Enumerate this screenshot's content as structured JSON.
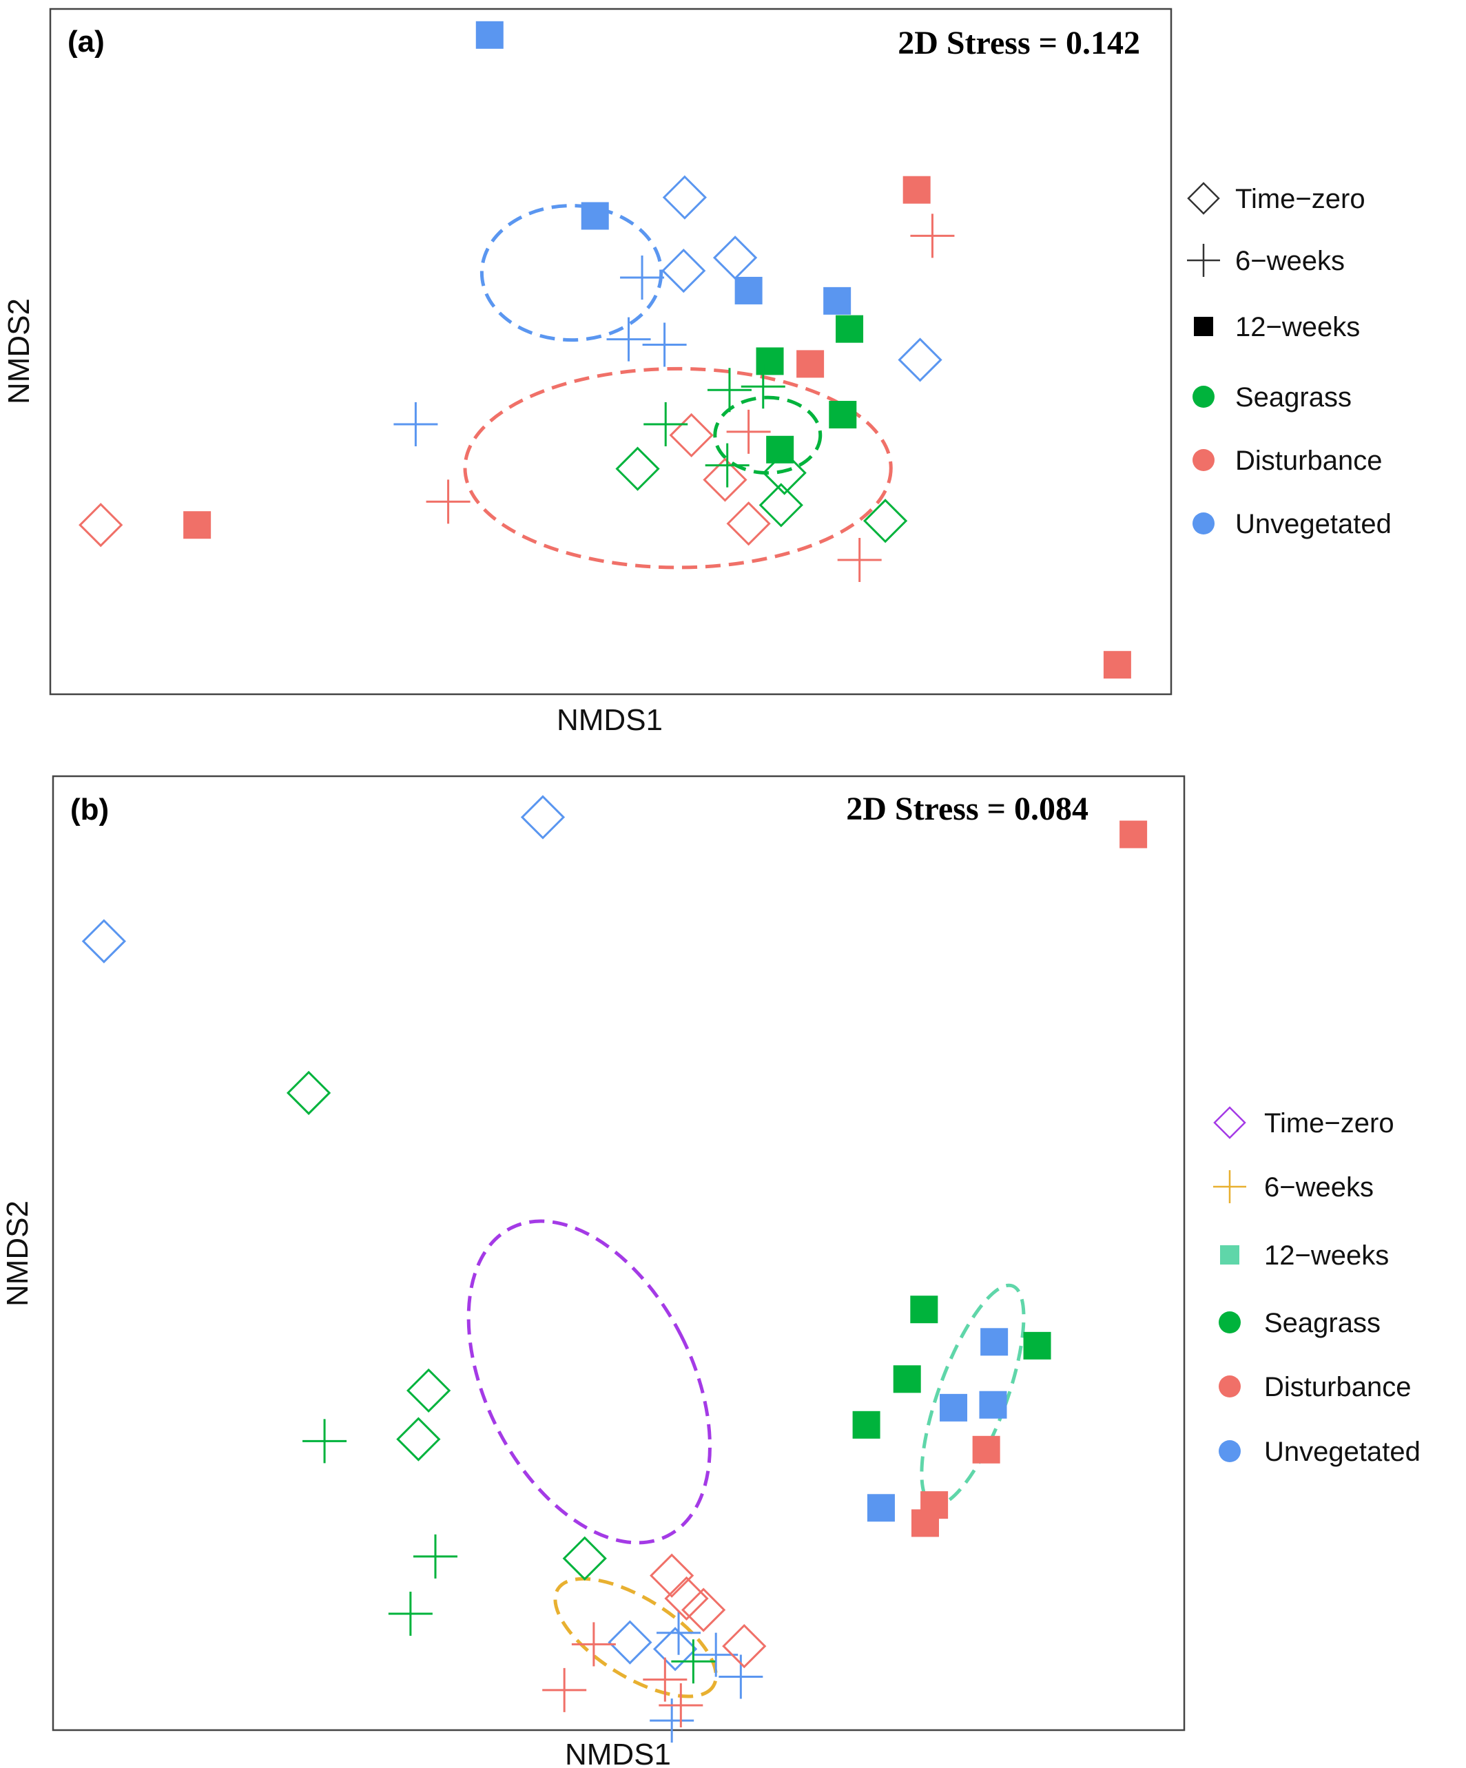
{
  "chart_data": [
    {
      "type": "scatter",
      "panel_label": "(a)",
      "stress_label": "2D Stress = 0.142",
      "xlabel": "NMDS1",
      "ylabel": "NMDS2",
      "xlim": [
        0,
        100
      ],
      "ylim": [
        0,
        100
      ],
      "colors": {
        "Seagrass": "#00b33c",
        "Disturbance": "#f07068",
        "Unvegetated": "#5a96f0"
      },
      "legend": {
        "position": "right",
        "shape_entries": [
          {
            "label": "Time−zero",
            "shape": "diamond",
            "color": "#333333"
          },
          {
            "label": "6−weeks",
            "shape": "plus",
            "color": "#333333"
          },
          {
            "label": "12−weeks",
            "shape": "square",
            "color": "#000000"
          }
        ],
        "color_entries": [
          {
            "label": "Seagrass",
            "color": "#00b33c"
          },
          {
            "label": "Disturbance",
            "color": "#f07068"
          },
          {
            "label": "Unvegetated",
            "color": "#5a96f0"
          }
        ]
      },
      "ellipses": [
        {
          "group": "Unvegetated",
          "color": "#5a96f0",
          "cx": 46.5,
          "cy": 61.5,
          "rx": 8.0,
          "ry": 9.8,
          "angle": 0
        },
        {
          "group": "Disturbance",
          "color": "#f07068",
          "cx": 56.0,
          "cy": 33.0,
          "rx": 19.0,
          "ry": 14.5,
          "angle": 0
        },
        {
          "group": "Seagrass",
          "color": "#00b33c",
          "cx": 64.0,
          "cy": 37.8,
          "rx": 4.7,
          "ry": 5.5,
          "angle": 0
        }
      ],
      "points": [
        {
          "x": 39.2,
          "y": 96.2,
          "shape": "square",
          "group": "Unvegetated"
        },
        {
          "x": 56.6,
          "y": 72.5,
          "shape": "diamond",
          "group": "Unvegetated"
        },
        {
          "x": 48.6,
          "y": 69.8,
          "shape": "square",
          "group": "Unvegetated"
        },
        {
          "x": 61.1,
          "y": 63.7,
          "shape": "diamond",
          "group": "Unvegetated"
        },
        {
          "x": 52.8,
          "y": 60.8,
          "shape": "plus",
          "group": "Unvegetated"
        },
        {
          "x": 56.5,
          "y": 61.8,
          "shape": "diamond",
          "group": "Unvegetated"
        },
        {
          "x": 62.3,
          "y": 58.9,
          "shape": "square",
          "group": "Unvegetated"
        },
        {
          "x": 70.2,
          "y": 57.4,
          "shape": "square",
          "group": "Unvegetated"
        },
        {
          "x": 51.6,
          "y": 51.8,
          "shape": "plus",
          "group": "Unvegetated"
        },
        {
          "x": 54.8,
          "y": 51.0,
          "shape": "plus",
          "group": "Unvegetated"
        },
        {
          "x": 77.6,
          "y": 48.8,
          "shape": "diamond",
          "group": "Unvegetated"
        },
        {
          "x": 32.6,
          "y": 39.4,
          "shape": "plus",
          "group": "Unvegetated"
        },
        {
          "x": 77.3,
          "y": 73.6,
          "shape": "square",
          "group": "Disturbance"
        },
        {
          "x": 78.7,
          "y": 66.9,
          "shape": "plus",
          "group": "Disturbance"
        },
        {
          "x": 67.8,
          "y": 48.2,
          "shape": "square",
          "group": "Disturbance"
        },
        {
          "x": 57.2,
          "y": 37.8,
          "shape": "diamond",
          "group": "Disturbance"
        },
        {
          "x": 62.3,
          "y": 38.3,
          "shape": "plus",
          "group": "Disturbance"
        },
        {
          "x": 60.2,
          "y": 31.3,
          "shape": "diamond",
          "group": "Disturbance"
        },
        {
          "x": 35.5,
          "y": 28.1,
          "shape": "plus",
          "group": "Disturbance"
        },
        {
          "x": 62.3,
          "y": 24.9,
          "shape": "diamond",
          "group": "Disturbance"
        },
        {
          "x": 4.5,
          "y": 24.7,
          "shape": "diamond",
          "group": "Disturbance"
        },
        {
          "x": 13.1,
          "y": 24.7,
          "shape": "square",
          "group": "Disturbance"
        },
        {
          "x": 72.2,
          "y": 19.6,
          "shape": "plus",
          "group": "Disturbance"
        },
        {
          "x": 95.2,
          "y": 4.3,
          "shape": "square",
          "group": "Disturbance"
        },
        {
          "x": 71.3,
          "y": 53.3,
          "shape": "square",
          "group": "Seagrass"
        },
        {
          "x": 64.2,
          "y": 48.6,
          "shape": "square",
          "group": "Seagrass"
        },
        {
          "x": 60.6,
          "y": 44.4,
          "shape": "plus",
          "group": "Seagrass"
        },
        {
          "x": 63.6,
          "y": 44.9,
          "shape": "plus",
          "group": "Seagrass"
        },
        {
          "x": 70.7,
          "y": 40.8,
          "shape": "square",
          "group": "Seagrass"
        },
        {
          "x": 54.9,
          "y": 39.4,
          "shape": "plus",
          "group": "Seagrass"
        },
        {
          "x": 65.1,
          "y": 35.7,
          "shape": "square",
          "group": "Seagrass"
        },
        {
          "x": 60.4,
          "y": 33.4,
          "shape": "plus",
          "group": "Seagrass"
        },
        {
          "x": 52.4,
          "y": 32.9,
          "shape": "diamond",
          "group": "Seagrass"
        },
        {
          "x": 65.5,
          "y": 32.3,
          "shape": "diamond",
          "group": "Seagrass"
        },
        {
          "x": 65.2,
          "y": 27.6,
          "shape": "diamond",
          "group": "Seagrass"
        },
        {
          "x": 74.5,
          "y": 25.3,
          "shape": "diamond",
          "group": "Seagrass"
        }
      ]
    },
    {
      "type": "scatter",
      "panel_label": "(b)",
      "stress_label": "2D Stress = 0.084",
      "xlabel": "NMDS1",
      "ylabel": "NMDS2",
      "xlim": [
        0,
        100
      ],
      "ylim": [
        0,
        100
      ],
      "colors": {
        "Seagrass": "#00b33c",
        "Disturbance": "#f07068",
        "Unvegetated": "#5a96f0"
      },
      "legend": {
        "position": "right",
        "shape_entries": [
          {
            "label": "Time−zero",
            "shape": "diamond",
            "color": "#a43ae6"
          },
          {
            "label": "6−weeks",
            "shape": "plus",
            "color": "#e8b030"
          },
          {
            "label": "12−weeks",
            "shape": "square",
            "color": "#5fd6a9"
          }
        ],
        "color_entries": [
          {
            "label": "Seagrass",
            "color": "#00b33c"
          },
          {
            "label": "Disturbance",
            "color": "#f07068"
          },
          {
            "label": "Unvegetated",
            "color": "#5a96f0"
          }
        ]
      },
      "ellipses": [
        {
          "group": "Time−zero",
          "color": "#a43ae6",
          "cx": 47.4,
          "cy": 36.5,
          "rx": 9.1,
          "ry": 18.1,
          "angle": -27
        },
        {
          "group": "6−weeks",
          "color": "#e8b030",
          "cx": 51.5,
          "cy": 9.7,
          "rx": 8.1,
          "ry": 4.1,
          "angle": 32
        },
        {
          "group": "12−weeks",
          "color": "#5fd6a9",
          "cx": 81.3,
          "cy": 35.1,
          "rx": 3.0,
          "ry": 12.2,
          "angle": 20
        }
      ],
      "points": [
        {
          "x": 43.3,
          "y": 95.7,
          "shape": "diamond",
          "group": "Unvegetated"
        },
        {
          "x": 4.5,
          "y": 82.7,
          "shape": "diamond",
          "group": "Unvegetated"
        },
        {
          "x": 51.0,
          "y": 9.2,
          "shape": "diamond",
          "group": "Unvegetated"
        },
        {
          "x": 55.0,
          "y": 8.5,
          "shape": "diamond",
          "group": "Unvegetated"
        },
        {
          "x": 55.3,
          "y": 10.2,
          "shape": "plus",
          "group": "Unvegetated"
        },
        {
          "x": 58.6,
          "y": 7.9,
          "shape": "plus",
          "group": "Unvegetated"
        },
        {
          "x": 60.8,
          "y": 5.6,
          "shape": "plus",
          "group": "Unvegetated"
        },
        {
          "x": 54.7,
          "y": 1.0,
          "shape": "plus",
          "group": "Unvegetated"
        },
        {
          "x": 83.2,
          "y": 40.7,
          "shape": "square",
          "group": "Unvegetated"
        },
        {
          "x": 79.6,
          "y": 33.8,
          "shape": "square",
          "group": "Unvegetated"
        },
        {
          "x": 83.1,
          "y": 34.1,
          "shape": "square",
          "group": "Unvegetated"
        },
        {
          "x": 73.2,
          "y": 23.3,
          "shape": "square",
          "group": "Unvegetated"
        },
        {
          "x": 95.5,
          "y": 93.9,
          "shape": "square",
          "group": "Disturbance"
        },
        {
          "x": 82.5,
          "y": 29.4,
          "shape": "square",
          "group": "Disturbance"
        },
        {
          "x": 77.9,
          "y": 23.6,
          "shape": "square",
          "group": "Disturbance"
        },
        {
          "x": 77.1,
          "y": 21.7,
          "shape": "square",
          "group": "Disturbance"
        },
        {
          "x": 54.7,
          "y": 16.2,
          "shape": "diamond",
          "group": "Disturbance"
        },
        {
          "x": 56.0,
          "y": 13.8,
          "shape": "diamond",
          "group": "Disturbance"
        },
        {
          "x": 57.5,
          "y": 12.6,
          "shape": "diamond",
          "group": "Disturbance"
        },
        {
          "x": 61.1,
          "y": 8.8,
          "shape": "diamond",
          "group": "Disturbance"
        },
        {
          "x": 47.8,
          "y": 9.0,
          "shape": "plus",
          "group": "Disturbance"
        },
        {
          "x": 54.1,
          "y": 5.3,
          "shape": "plus",
          "group": "Disturbance"
        },
        {
          "x": 45.2,
          "y": 4.2,
          "shape": "plus",
          "group": "Disturbance"
        },
        {
          "x": 55.5,
          "y": 2.6,
          "shape": "plus",
          "group": "Disturbance"
        },
        {
          "x": 22.6,
          "y": 66.8,
          "shape": "diamond",
          "group": "Seagrass"
        },
        {
          "x": 33.2,
          "y": 35.6,
          "shape": "diamond",
          "group": "Seagrass"
        },
        {
          "x": 32.3,
          "y": 30.5,
          "shape": "diamond",
          "group": "Seagrass"
        },
        {
          "x": 47.0,
          "y": 18.0,
          "shape": "diamond",
          "group": "Seagrass"
        },
        {
          "x": 24.0,
          "y": 30.3,
          "shape": "plus",
          "group": "Seagrass"
        },
        {
          "x": 33.8,
          "y": 18.2,
          "shape": "plus",
          "group": "Seagrass"
        },
        {
          "x": 31.6,
          "y": 12.2,
          "shape": "plus",
          "group": "Seagrass"
        },
        {
          "x": 56.6,
          "y": 7.2,
          "shape": "plus",
          "group": "Seagrass"
        },
        {
          "x": 77.0,
          "y": 44.1,
          "shape": "square",
          "group": "Seagrass"
        },
        {
          "x": 87.0,
          "y": 40.3,
          "shape": "square",
          "group": "Seagrass"
        },
        {
          "x": 75.5,
          "y": 36.8,
          "shape": "square",
          "group": "Seagrass"
        },
        {
          "x": 71.9,
          "y": 32.0,
          "shape": "square",
          "group": "Seagrass"
        }
      ]
    }
  ]
}
